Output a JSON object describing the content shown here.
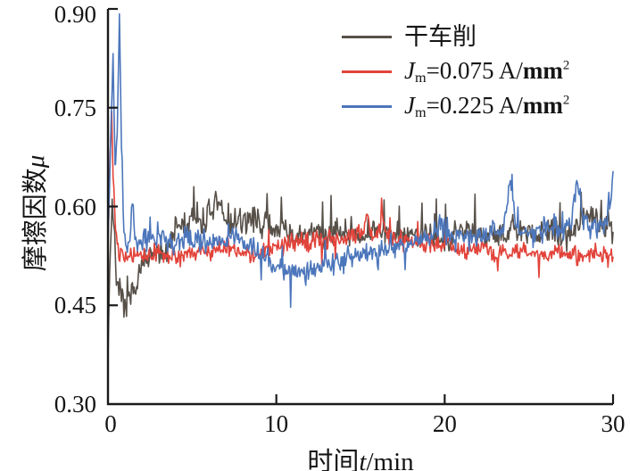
{
  "chart_data": {
    "type": "line",
    "title": "",
    "xlabel": {
      "prefix": "时间",
      "var": "t",
      "suffix": "/min"
    },
    "ylabel": {
      "prefix": "摩擦因数",
      "var": "μ"
    },
    "xlim": [
      0,
      30
    ],
    "ylim": [
      0.3,
      0.9
    ],
    "xticks": [
      0,
      10,
      20,
      30
    ],
    "xticklabels": [
      "0",
      "10",
      "20",
      "30"
    ],
    "yticks": [
      0.3,
      0.45,
      0.6,
      0.75,
      0.9
    ],
    "yticklabels": [
      "0.30",
      "0.45",
      "0.60",
      "0.75",
      "0.90"
    ],
    "grid": false,
    "legend_position": "top-right-inside",
    "axis_color": "#1a1a1a",
    "series": [
      {
        "name": "干车削",
        "color": "#575049",
        "noise": 0.015,
        "seed": 7,
        "spike_prob": 0.06,
        "spike_amp": 0.026,
        "spike_sign": 1,
        "trend": [
          [
            0,
            0.375
          ],
          [
            0.1,
            0.5
          ],
          [
            0.25,
            0.615
          ],
          [
            0.35,
            0.57
          ],
          [
            0.5,
            0.5
          ],
          [
            0.7,
            0.462
          ],
          [
            0.9,
            0.447
          ],
          [
            1.1,
            0.44
          ],
          [
            1.3,
            0.455
          ],
          [
            1.6,
            0.48
          ],
          [
            1.9,
            0.505
          ],
          [
            2.2,
            0.515
          ],
          [
            2.6,
            0.52
          ],
          [
            3.0,
            0.525
          ],
          [
            3.4,
            0.53
          ],
          [
            3.8,
            0.555
          ],
          [
            4.2,
            0.575
          ],
          [
            4.6,
            0.57
          ],
          [
            5.0,
            0.58
          ],
          [
            5.5,
            0.575
          ],
          [
            6.0,
            0.59
          ],
          [
            6.4,
            0.605
          ],
          [
            6.8,
            0.59
          ],
          [
            7.2,
            0.575
          ],
          [
            7.6,
            0.57
          ],
          [
            8.0,
            0.575
          ],
          [
            8.5,
            0.585
          ],
          [
            9.0,
            0.58
          ],
          [
            9.5,
            0.57
          ],
          [
            10,
            0.565
          ],
          [
            10.5,
            0.555
          ],
          [
            11,
            0.55
          ],
          [
            11.5,
            0.555
          ],
          [
            12,
            0.555
          ],
          [
            12.5,
            0.56
          ],
          [
            13,
            0.555
          ],
          [
            13.5,
            0.56
          ],
          [
            14,
            0.565
          ],
          [
            14.5,
            0.56
          ],
          [
            15,
            0.555
          ],
          [
            15.5,
            0.56
          ],
          [
            16,
            0.565
          ],
          [
            16.5,
            0.56
          ],
          [
            17,
            0.565
          ],
          [
            17.5,
            0.56
          ],
          [
            18,
            0.555
          ],
          [
            18.5,
            0.56
          ],
          [
            19,
            0.555
          ],
          [
            19.5,
            0.555
          ],
          [
            20,
            0.55
          ],
          [
            20.5,
            0.555
          ],
          [
            21,
            0.56
          ],
          [
            21.5,
            0.565
          ],
          [
            22,
            0.56
          ],
          [
            22.5,
            0.555
          ],
          [
            23,
            0.56
          ],
          [
            23.5,
            0.555
          ],
          [
            24,
            0.565
          ],
          [
            24.5,
            0.56
          ],
          [
            25,
            0.555
          ],
          [
            25.5,
            0.56
          ],
          [
            26,
            0.565
          ],
          [
            26.5,
            0.56
          ],
          [
            27,
            0.555
          ],
          [
            27.5,
            0.565
          ],
          [
            28,
            0.575
          ],
          [
            28.5,
            0.59
          ],
          [
            28.8,
            0.6
          ],
          [
            29.1,
            0.575
          ],
          [
            29.4,
            0.565
          ],
          [
            29.7,
            0.575
          ],
          [
            30,
            0.565
          ]
        ]
      },
      {
        "name": "Jm=0.075 A/mm2",
        "color": "#e2433a",
        "noise": 0.01,
        "seed": 13,
        "spike_prob": 0.04,
        "spike_amp": 0.018,
        "spike_sign": 0,
        "trend": [
          [
            0,
            0.555
          ],
          [
            0.15,
            0.7
          ],
          [
            0.22,
            0.745
          ],
          [
            0.3,
            0.66
          ],
          [
            0.45,
            0.575
          ],
          [
            0.6,
            0.535
          ],
          [
            0.8,
            0.525
          ],
          [
            1.2,
            0.522
          ],
          [
            1.6,
            0.525
          ],
          [
            2,
            0.522
          ],
          [
            2.5,
            0.528
          ],
          [
            3,
            0.53
          ],
          [
            3.5,
            0.525
          ],
          [
            4,
            0.522
          ],
          [
            4.5,
            0.528
          ],
          [
            5,
            0.53
          ],
          [
            5.5,
            0.535
          ],
          [
            6,
            0.532
          ],
          [
            6.5,
            0.535
          ],
          [
            7,
            0.538
          ],
          [
            7.5,
            0.532
          ],
          [
            8,
            0.528
          ],
          [
            8.5,
            0.525
          ],
          [
            9,
            0.528
          ],
          [
            9.5,
            0.535
          ],
          [
            10,
            0.542
          ],
          [
            10.5,
            0.545
          ],
          [
            11,
            0.548
          ],
          [
            11.5,
            0.545
          ],
          [
            12,
            0.548
          ],
          [
            12.5,
            0.55
          ],
          [
            13,
            0.552
          ],
          [
            13.5,
            0.55
          ],
          [
            14,
            0.552
          ],
          [
            14.5,
            0.555
          ],
          [
            15,
            0.558
          ],
          [
            15.4,
            0.585
          ],
          [
            15.7,
            0.555
          ],
          [
            16,
            0.558
          ],
          [
            16.3,
            0.585
          ],
          [
            16.6,
            0.555
          ],
          [
            17,
            0.552
          ],
          [
            17.5,
            0.548
          ],
          [
            18,
            0.55
          ],
          [
            18.5,
            0.548
          ],
          [
            19,
            0.545
          ],
          [
            19.5,
            0.542
          ],
          [
            20,
            0.545
          ],
          [
            20.5,
            0.538
          ],
          [
            21,
            0.532
          ],
          [
            21.5,
            0.535
          ],
          [
            22,
            0.538
          ],
          [
            22.5,
            0.532
          ],
          [
            23,
            0.528
          ],
          [
            23.5,
            0.532
          ],
          [
            24,
            0.528
          ],
          [
            24.5,
            0.532
          ],
          [
            25,
            0.528
          ],
          [
            25.5,
            0.53
          ],
          [
            26,
            0.525
          ],
          [
            26.5,
            0.528
          ],
          [
            27,
            0.532
          ],
          [
            27.5,
            0.528
          ],
          [
            28,
            0.524
          ],
          [
            28.5,
            0.528
          ],
          [
            29,
            0.53
          ],
          [
            29.5,
            0.525
          ],
          [
            30,
            0.528
          ]
        ]
      },
      {
        "name": "Jm=0.225 A/mm2",
        "color": "#4c76bb",
        "noise": 0.013,
        "seed": 29,
        "spike_prob": 0.05,
        "spike_amp": 0.02,
        "spike_sign": 0,
        "trend": [
          [
            0,
            0.555
          ],
          [
            0.15,
            0.68
          ],
          [
            0.3,
            0.845
          ],
          [
            0.42,
            0.66
          ],
          [
            0.55,
            0.72
          ],
          [
            0.68,
            0.885
          ],
          [
            0.8,
            0.7
          ],
          [
            0.95,
            0.565
          ],
          [
            1.1,
            0.53
          ],
          [
            1.3,
            0.55
          ],
          [
            1.45,
            0.61
          ],
          [
            1.6,
            0.555
          ],
          [
            1.8,
            0.54
          ],
          [
            2.1,
            0.548
          ],
          [
            2.5,
            0.552
          ],
          [
            3,
            0.555
          ],
          [
            3.5,
            0.548
          ],
          [
            4,
            0.545
          ],
          [
            4.5,
            0.55
          ],
          [
            5,
            0.552
          ],
          [
            5.5,
            0.548
          ],
          [
            6,
            0.545
          ],
          [
            6.5,
            0.55
          ],
          [
            7,
            0.552
          ],
          [
            7.4,
            0.562
          ],
          [
            7.8,
            0.548
          ],
          [
            8.2,
            0.54
          ],
          [
            8.6,
            0.535
          ],
          [
            9,
            0.528
          ],
          [
            9.5,
            0.515
          ],
          [
            10,
            0.505
          ],
          [
            10.5,
            0.502
          ],
          [
            11,
            0.505
          ],
          [
            11.5,
            0.498
          ],
          [
            12,
            0.498
          ],
          [
            12.5,
            0.502
          ],
          [
            13,
            0.51
          ],
          [
            13.5,
            0.515
          ],
          [
            14,
            0.52
          ],
          [
            14.5,
            0.525
          ],
          [
            15,
            0.528
          ],
          [
            15.5,
            0.53
          ],
          [
            16,
            0.532
          ],
          [
            16.5,
            0.535
          ],
          [
            17,
            0.538
          ],
          [
            17.5,
            0.54
          ],
          [
            18,
            0.542
          ],
          [
            18.5,
            0.545
          ],
          [
            19,
            0.55
          ],
          [
            19.5,
            0.565
          ],
          [
            19.8,
            0.585
          ],
          [
            20.1,
            0.56
          ],
          [
            20.5,
            0.552
          ],
          [
            21,
            0.558
          ],
          [
            21.5,
            0.555
          ],
          [
            22,
            0.558
          ],
          [
            22.5,
            0.555
          ],
          [
            23,
            0.558
          ],
          [
            23.5,
            0.56
          ],
          [
            23.9,
            0.645
          ],
          [
            24.2,
            0.575
          ],
          [
            24.5,
            0.562
          ],
          [
            25,
            0.558
          ],
          [
            25.5,
            0.562
          ],
          [
            26,
            0.572
          ],
          [
            26.5,
            0.565
          ],
          [
            27,
            0.562
          ],
          [
            27.5,
            0.57
          ],
          [
            27.9,
            0.64
          ],
          [
            28.2,
            0.585
          ],
          [
            28.5,
            0.572
          ],
          [
            29,
            0.568
          ],
          [
            29.3,
            0.578
          ],
          [
            29.6,
            0.572
          ],
          [
            29.85,
            0.6
          ],
          [
            30,
            0.655
          ]
        ]
      }
    ]
  },
  "legend": {
    "items": [
      {
        "label": "干车削"
      },
      {
        "prefix": "J",
        "sub": "m",
        "mid": "=0.075 A/",
        "unit": "mm",
        "sup": "2"
      },
      {
        "prefix": "J",
        "sub": "m",
        "mid": "=0.225 A/",
        "unit": "mm",
        "sup": "2"
      }
    ]
  }
}
